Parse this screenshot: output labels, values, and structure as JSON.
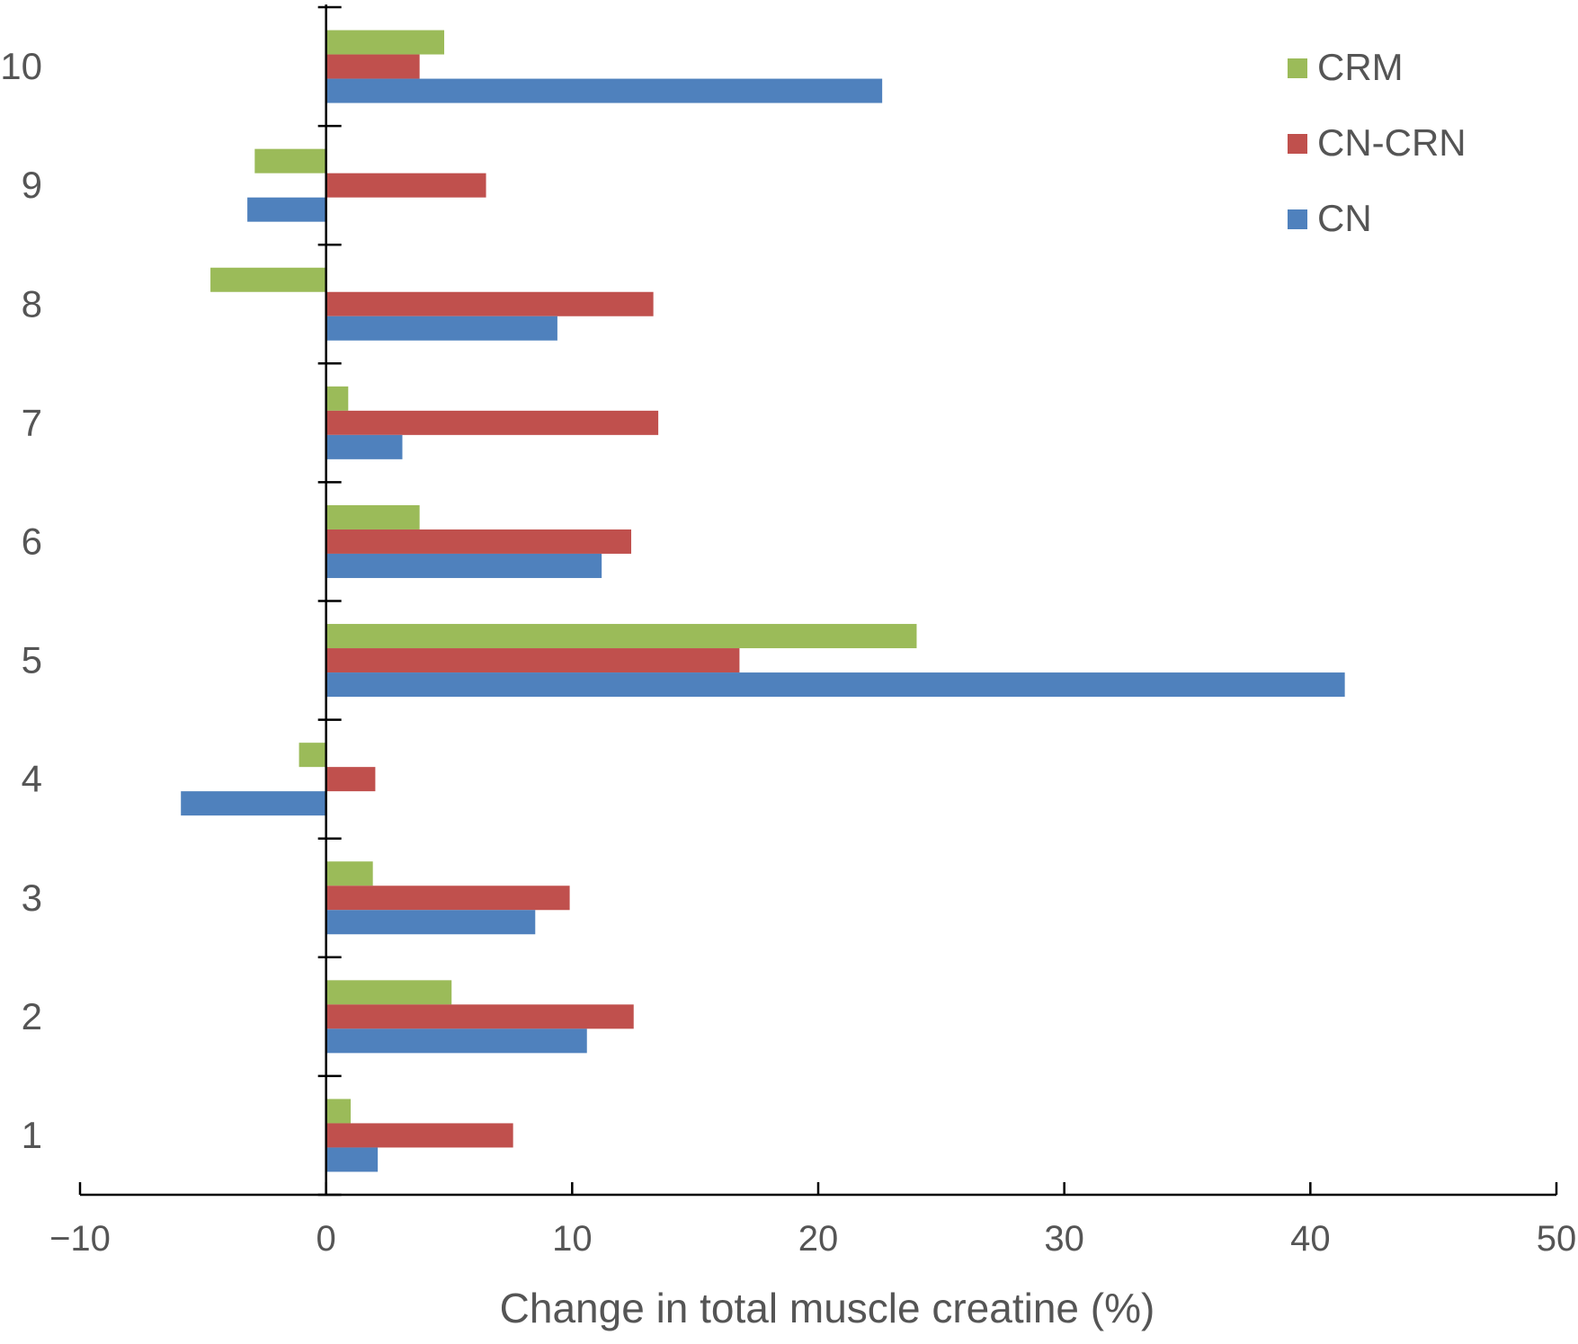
{
  "chart_data": {
    "type": "bar",
    "orientation": "horizontal",
    "title": "",
    "xlabel": "Change in total muscle creatine (%)",
    "ylabel": "",
    "xlim": [
      -10,
      50
    ],
    "x_ticks": [
      -10,
      0,
      10,
      20,
      30,
      40,
      50
    ],
    "x_tick_labels": [
      "−10",
      "0",
      "10",
      "20",
      "30",
      "40",
      "50"
    ],
    "categories": [
      "1",
      "2",
      "3",
      "4",
      "5",
      "6",
      "7",
      "8",
      "9",
      "10"
    ],
    "grid": false,
    "legend_position": "top-right",
    "series": [
      {
        "name": "CRM",
        "color": "#9bbb59",
        "values": [
          1.0,
          5.1,
          1.9,
          -1.1,
          24.0,
          3.8,
          0.9,
          -4.7,
          -2.9,
          4.8
        ]
      },
      {
        "name": "CN-CRN",
        "color": "#c0504d",
        "values": [
          7.6,
          12.5,
          9.9,
          2.0,
          16.8,
          12.4,
          13.5,
          13.3,
          6.5,
          3.8
        ]
      },
      {
        "name": "CN",
        "color": "#4f81bd",
        "values": [
          2.1,
          10.6,
          8.5,
          -5.9,
          41.4,
          11.2,
          3.1,
          9.4,
          -3.2,
          22.6
        ]
      }
    ]
  }
}
